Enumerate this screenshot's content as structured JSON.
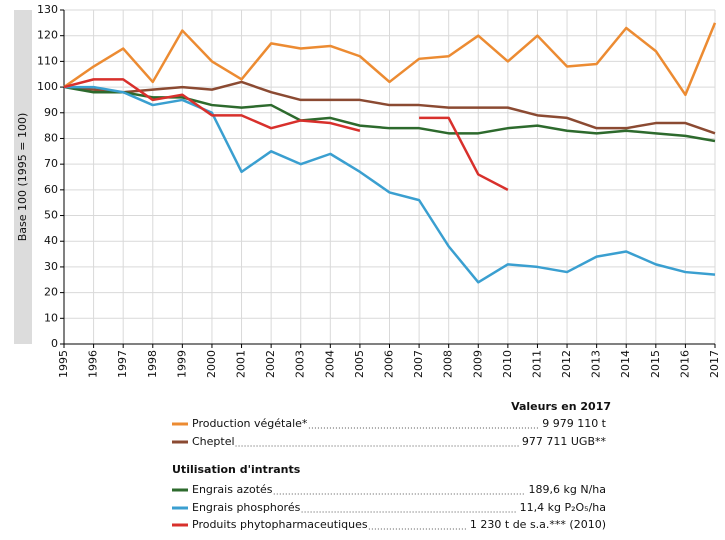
{
  "chart_data": {
    "type": "line",
    "y_label": "Base 100 (1995 = 100)",
    "x": [
      1995,
      1996,
      1997,
      1998,
      1999,
      2000,
      2001,
      2002,
      2003,
      2004,
      2005,
      2006,
      2007,
      2008,
      2009,
      2010,
      2011,
      2012,
      2013,
      2014,
      2015,
      2016,
      2017
    ],
    "xlim": [
      1995,
      2017
    ],
    "xticks": [
      1995,
      1996,
      1997,
      1998,
      1999,
      2000,
      2001,
      2002,
      2003,
      2004,
      2005,
      2006,
      2007,
      2008,
      2009,
      2010,
      2011,
      2012,
      2013,
      2014,
      2015,
      2016,
      2017
    ],
    "ylim": [
      0,
      130
    ],
    "yticks": [
      0,
      10,
      20,
      30,
      40,
      50,
      60,
      70,
      80,
      90,
      100,
      110,
      120,
      130
    ],
    "grid": true,
    "legend_title": "Valeurs en 2017",
    "legend_group_title": "Utilisation d'intrants",
    "series": [
      {
        "name": "Production végétale*",
        "color": "#ec8b32",
        "value_2017": "9 979 110 t",
        "values": [
          100,
          108,
          115,
          102,
          122,
          110,
          103,
          117,
          115,
          116,
          112,
          102,
          111,
          112,
          120,
          110,
          120,
          108,
          109,
          123,
          114,
          97,
          125
        ]
      },
      {
        "name": "Cheptel",
        "color": "#8b4a32",
        "value_2017": "977 711 UGB**",
        "values": [
          100,
          99,
          98,
          99,
          100,
          99,
          102,
          98,
          95,
          95,
          95,
          93,
          93,
          92,
          92,
          92,
          89,
          88,
          84,
          84,
          86,
          86,
          82
        ]
      },
      {
        "name": "Engrais azotés",
        "color": "#2d6a2d",
        "value_2017": "189,6 kg N/ha",
        "values": [
          100,
          98,
          98,
          96,
          96,
          93,
          92,
          93,
          87,
          88,
          85,
          84,
          84,
          82,
          82,
          84,
          85,
          83,
          82,
          83,
          82,
          81,
          79
        ]
      },
      {
        "name": "Engrais phosphorés",
        "color": "#3a9fd0",
        "value_2017": "11,4 kg P₂O₅/ha",
        "values": [
          100,
          100,
          98,
          93,
          95,
          90,
          67,
          75,
          70,
          74,
          67,
          59,
          56,
          38,
          24,
          31,
          30,
          28,
          34,
          36,
          31,
          28,
          27
        ]
      },
      {
        "name": "Produits phytopharmaceutiques",
        "color": "#d8302c",
        "value_2017": "1 230 t de s.a.*** (2010)",
        "values": [
          100,
          103,
          103,
          95,
          97,
          89,
          89,
          84,
          87,
          86,
          83,
          null,
          88,
          88,
          66,
          60,
          null,
          null,
          null,
          null,
          null,
          null,
          null
        ]
      }
    ]
  }
}
